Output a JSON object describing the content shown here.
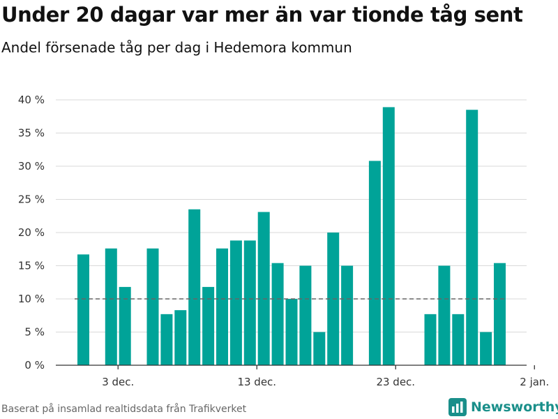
{
  "title": "Under 20 dagar var mer än var tionde tåg sent",
  "subtitle": "Andel försenade tåg per dag i Hedemora kommun",
  "source": "Baserat på insamlad realtidsdata från Trafikverket",
  "brand": {
    "name": "Newsworthy",
    "icon": "bar-chart-logo-icon",
    "color": "#1a8f8a"
  },
  "colors": {
    "bar": "#00a398",
    "grid": "#d9d9d9",
    "reference": "#666666",
    "axis": "#333333"
  },
  "chart_data": {
    "type": "bar",
    "x_start": "2023-11-30",
    "x": [
      "30 nov.",
      "1 dec.",
      "2 dec.",
      "3 dec.",
      "4 dec.",
      "5 dec.",
      "6 dec.",
      "7 dec.",
      "8 dec.",
      "9 dec.",
      "10 dec.",
      "11 dec.",
      "12 dec.",
      "13 dec.",
      "14 dec.",
      "15 dec.",
      "16 dec.",
      "17 dec.",
      "18 dec.",
      "19 dec.",
      "20 dec.",
      "21 dec.",
      "22 dec.",
      "23 dec.",
      "24 dec.",
      "25 dec.",
      "26 dec.",
      "27 dec.",
      "28 dec.",
      "29 dec.",
      "30 dec.",
      "31 dec."
    ],
    "values": [
      16.7,
      null,
      17.6,
      11.8,
      null,
      17.6,
      7.7,
      8.3,
      23.5,
      11.8,
      17.6,
      18.8,
      18.8,
      23.1,
      15.4,
      10.0,
      15.0,
      5.0,
      20.0,
      15.0,
      null,
      30.8,
      38.9,
      null,
      null,
      7.7,
      15.0,
      7.7,
      38.5,
      5.0,
      15.4,
      null
    ],
    "reference_line": 10,
    "y_ticks": [
      "0 %",
      "5 %",
      "10 %",
      "15 %",
      "20 %",
      "25 %",
      "30 %",
      "35 %",
      "40 %"
    ],
    "ylim": [
      0,
      40
    ],
    "x_ticks": [
      {
        "label": "3 dec.",
        "index": 2.5
      },
      {
        "label": "13 dec.",
        "index": 12.5
      },
      {
        "label": "23 dec.",
        "index": 22.5
      },
      {
        "label": "2 jan.",
        "index": 32.5
      }
    ],
    "grid": true,
    "legend": "none"
  }
}
